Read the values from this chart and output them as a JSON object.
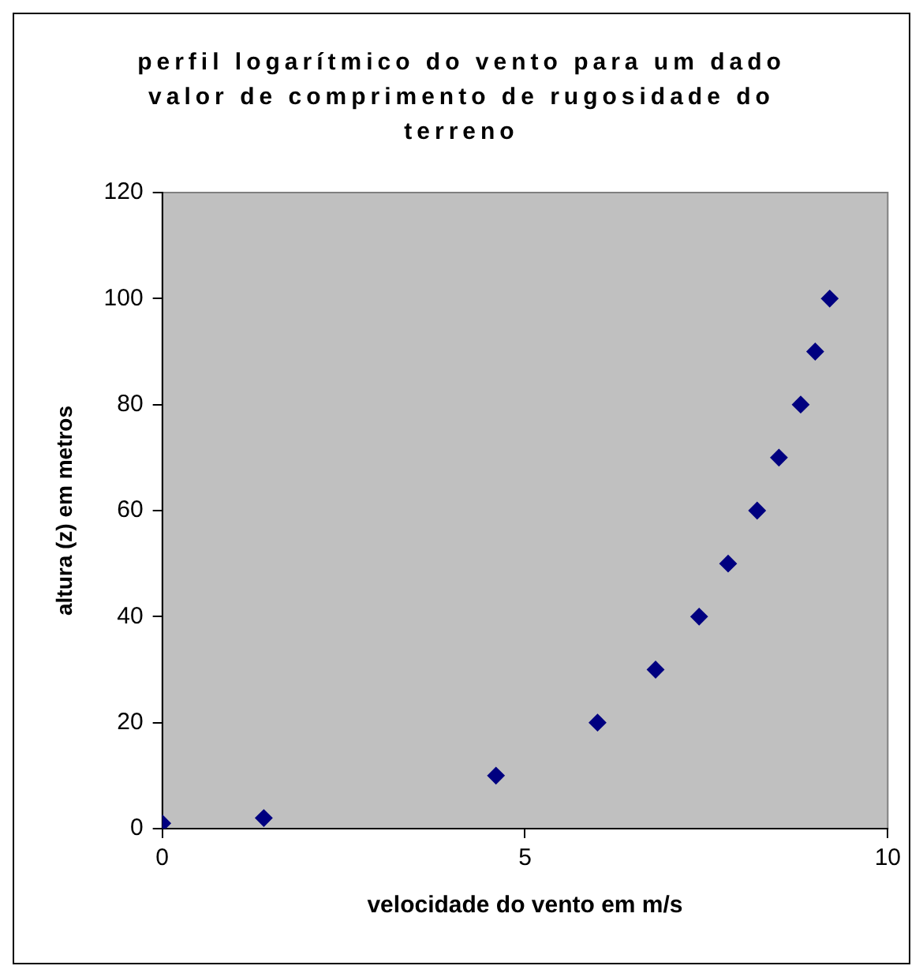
{
  "chart_data": {
    "type": "scatter",
    "title": "perfil logarítmico do vento para um dado valor de comprimento de rugosidade do terreno",
    "xlabel": "velocidade do vento em m/s",
    "ylabel": "altura (z) em metros",
    "x": [
      0,
      1.4,
      4.6,
      6.0,
      6.8,
      7.4,
      7.8,
      8.2,
      8.5,
      8.8,
      9.0,
      9.2
    ],
    "series": [
      {
        "color": "#000080",
        "values": [
          1,
          2,
          10,
          20,
          30,
          40,
          50,
          60,
          70,
          80,
          90,
          100
        ]
      }
    ],
    "xlim": [
      0,
      10
    ],
    "xticks": [
      0,
      5,
      10
    ],
    "ylim": [
      0,
      120
    ],
    "yticks": [
      0,
      20,
      40,
      60,
      80,
      100,
      120
    ],
    "grid": false,
    "legend": false,
    "marker": "diamond"
  }
}
